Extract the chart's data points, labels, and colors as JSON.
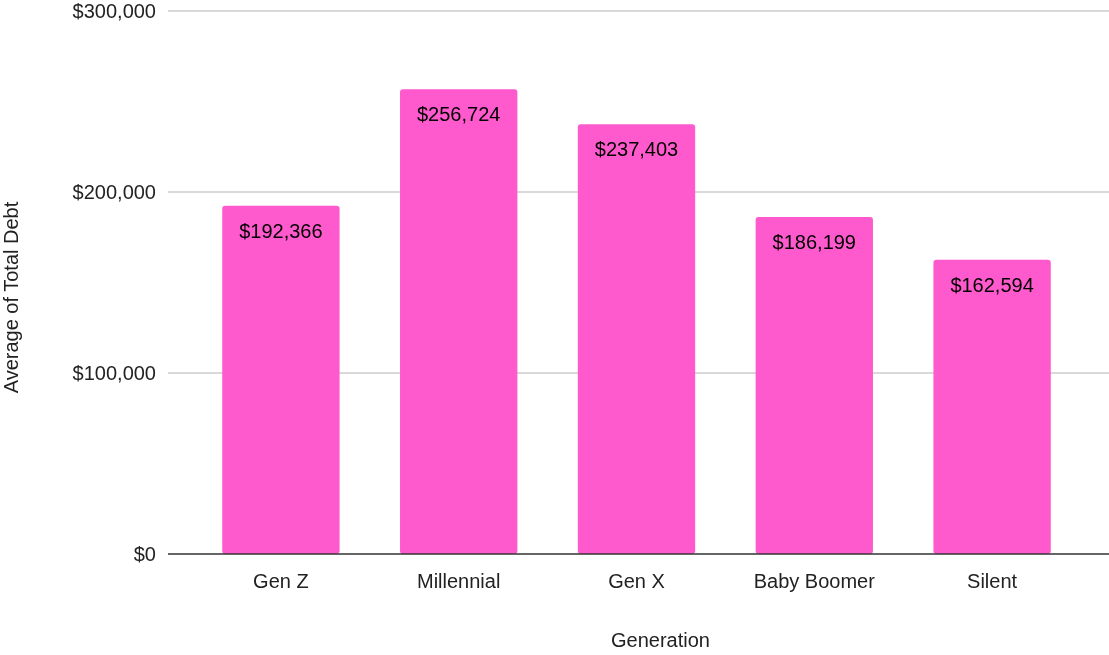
{
  "chart_data": {
    "type": "bar",
    "xlabel": "Generation",
    "ylabel": "Average of Total Debt",
    "categories": [
      "Gen Z",
      "Millennial",
      "Gen X",
      "Baby Boomer",
      "Silent"
    ],
    "values": [
      192366,
      256724,
      237403,
      186199,
      162594
    ],
    "value_labels": [
      "$192,366",
      "$256,724",
      "$237,403",
      "$186,199",
      "$162,594"
    ],
    "color": "#ff5acd",
    "ylim": [
      0,
      300000
    ],
    "yticks": [
      {
        "value": 0,
        "label": "$0"
      },
      {
        "value": 100000,
        "label": "$100,000"
      },
      {
        "value": 200000,
        "label": "$200,000"
      },
      {
        "value": 300000,
        "label": "$300,000"
      }
    ],
    "grid": "y"
  }
}
